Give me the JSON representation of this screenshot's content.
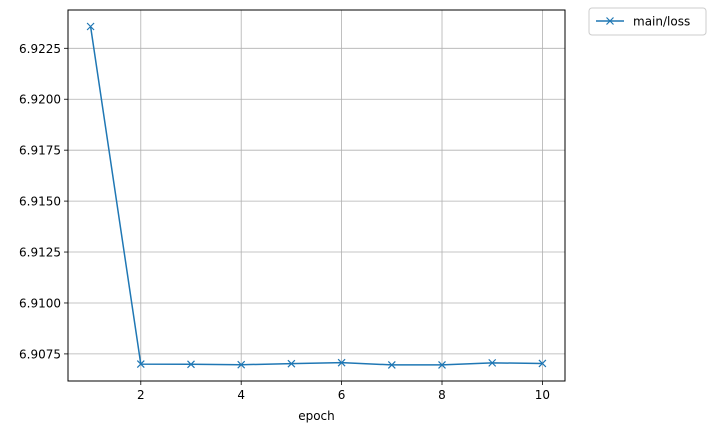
{
  "chart_data": {
    "type": "line",
    "xlabel": "epoch",
    "ylabel": "",
    "title": "",
    "xlim": [
      0.55,
      10.45
    ],
    "ylim": [
      6.90617,
      6.92438
    ],
    "xticks": [
      2,
      4,
      6,
      8,
      10
    ],
    "yticks": [
      6.9075,
      6.91,
      6.9125,
      6.915,
      6.9175,
      6.92,
      6.9225
    ],
    "ytick_labels": [
      "6.9075",
      "6.9100",
      "6.9125",
      "6.9150",
      "6.9175",
      "6.9200",
      "6.9225"
    ],
    "grid": true,
    "legend_position": "outside-top-right",
    "series": [
      {
        "name": "main/loss",
        "color": "#1f77b4",
        "marker": "x",
        "x": [
          1,
          2,
          3,
          4,
          5,
          6,
          7,
          8,
          9,
          10
        ],
        "y": [
          6.92357,
          6.907,
          6.90699,
          6.90697,
          6.90702,
          6.90707,
          6.90696,
          6.90696,
          6.90706,
          6.90703
        ]
      }
    ]
  }
}
